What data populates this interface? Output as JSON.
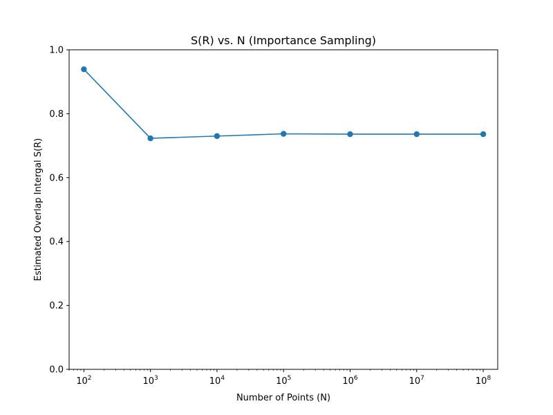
{
  "chart_data": {
    "type": "line",
    "title": "S(R) vs. N (Importance Sampling)",
    "xlabel": "Number of Points (N)",
    "ylabel": "Estimated Overlap Intergal S(R)",
    "x_scale": "log",
    "x_tick_base": "10",
    "x_ticks": [
      100,
      1000,
      10000,
      100000,
      1000000,
      10000000,
      100000000
    ],
    "x_tick_exponents": [
      "2",
      "3",
      "4",
      "5",
      "6",
      "7",
      "8"
    ],
    "xlim": [
      60,
      165000000
    ],
    "ylim": [
      0,
      1
    ],
    "y_ticks": [
      0.0,
      0.2,
      0.4,
      0.6,
      0.8,
      1.0
    ],
    "y_tick_labels": [
      "0.0",
      "0.2",
      "0.4",
      "0.6",
      "0.8",
      "1.0"
    ],
    "grid": false,
    "series": [
      {
        "color": "#1f77b4",
        "marker": "circle",
        "x": [
          100,
          1000,
          10000,
          100000,
          1000000,
          10000000,
          100000000
        ],
        "y": [
          0.939,
          0.723,
          0.73,
          0.737,
          0.736,
          0.736,
          0.736
        ]
      }
    ]
  }
}
